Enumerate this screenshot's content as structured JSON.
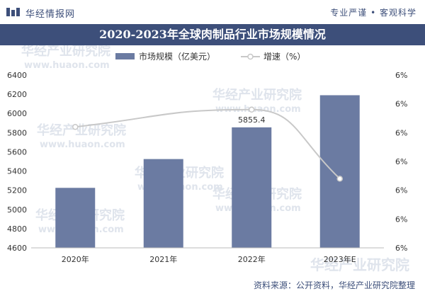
{
  "header": {
    "brand": "华经情报网",
    "slogan": "专业严谨 • 客观科学"
  },
  "source": "资料来源：公开资料，华经产业研究院整理",
  "watermark": {
    "name": "华经产业研究院",
    "url": "www.huaon.com"
  },
  "colors": {
    "bar": "#6b7ba2",
    "line": "#c8c8c8",
    "accent": "#3d4f7a"
  },
  "chart_data": {
    "type": "bar",
    "title": "2020-2023年全球肉制品行业市场规模情况",
    "categories": [
      "2020年",
      "2021年",
      "2022年",
      "2023年E"
    ],
    "series": [
      {
        "name": "市场规模（亿美元）",
        "type": "bar",
        "axis": "left",
        "values": [
          5225,
          5525,
          5855.4,
          6190
        ]
      },
      {
        "name": "增速（%）",
        "type": "line",
        "axis": "right",
        "values": [
          5.75,
          null,
          5.8,
          5.6
        ]
      }
    ],
    "data_labels": [
      "",
      "",
      "5855.4",
      ""
    ],
    "ylim": [
      4600,
      6400
    ],
    "yticks": [
      "4600",
      "4800",
      "5000",
      "5200",
      "5400",
      "5600",
      "5800",
      "6000",
      "6200",
      "6400"
    ],
    "y2ticks": [
      "6%",
      "6%",
      "6%",
      "6%",
      "6%",
      "6%",
      "6%"
    ],
    "legend_position": "top-center",
    "grid": false
  }
}
